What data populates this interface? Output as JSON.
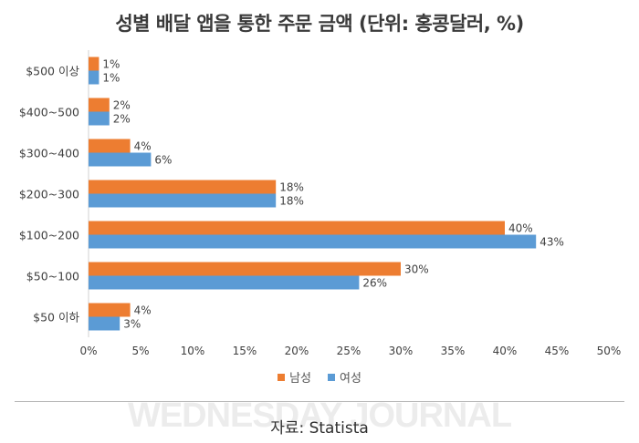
{
  "chart_data": {
    "type": "bar",
    "orientation": "horizontal",
    "title": "성별 배달 앱을 통한 주문 금액 (단위: 홍콩달러, %)",
    "categories": [
      "$500 이상",
      "$400~500",
      "$300~400",
      "$200~300",
      "$100~200",
      "$50~100",
      "$50 이하"
    ],
    "series": [
      {
        "name": "남성",
        "color": "#ED7D31",
        "values": [
          1,
          2,
          4,
          18,
          40,
          30,
          4
        ]
      },
      {
        "name": "여성",
        "color": "#5B9BD5",
        "values": [
          1,
          2,
          6,
          18,
          43,
          26,
          3
        ]
      }
    ],
    "value_suffix": "%",
    "xlim": [
      0,
      50
    ],
    "x_ticks": [
      "0%",
      "5%",
      "10%",
      "15%",
      "20%",
      "25%",
      "30%",
      "35%",
      "40%",
      "45%",
      "50%"
    ],
    "grid": false,
    "legend_position": "bottom"
  },
  "watermark": "WEDNESDAY JOURNAL",
  "source": "자료: Statista"
}
